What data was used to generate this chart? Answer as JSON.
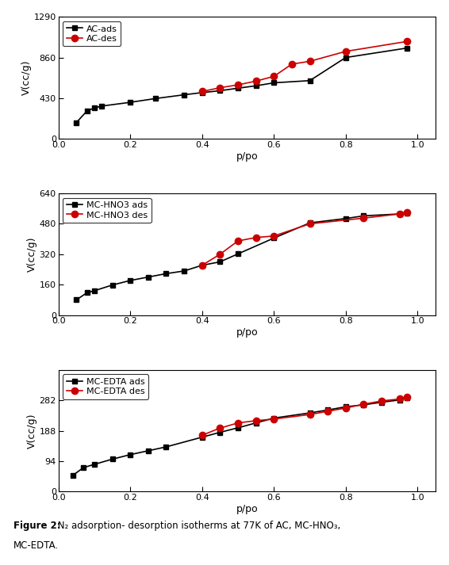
{
  "plot1": {
    "ads_x": [
      0.05,
      0.08,
      0.1,
      0.12,
      0.2,
      0.27,
      0.35,
      0.4,
      0.45,
      0.5,
      0.55,
      0.6,
      0.7,
      0.8,
      0.97
    ],
    "ads_y": [
      170,
      295,
      325,
      345,
      385,
      425,
      465,
      488,
      508,
      535,
      560,
      592,
      615,
      860,
      960
    ],
    "des_x": [
      0.4,
      0.45,
      0.5,
      0.55,
      0.6,
      0.65,
      0.7,
      0.8,
      0.97
    ],
    "des_y": [
      500,
      540,
      570,
      610,
      660,
      790,
      820,
      925,
      1030
    ],
    "ylabel": "V(cc/g)",
    "xlabel": "p/po",
    "ylim": [
      0,
      1290
    ],
    "yticks": [
      0,
      430,
      860,
      1290
    ],
    "xlim": [
      0.0,
      1.05
    ],
    "xticks": [
      0.0,
      0.2,
      0.4,
      0.6,
      0.8,
      1.0
    ],
    "ads_label": "AC-ads",
    "des_label": "AC-des"
  },
  "plot2": {
    "ads_x": [
      0.05,
      0.08,
      0.1,
      0.15,
      0.2,
      0.25,
      0.3,
      0.35,
      0.4,
      0.45,
      0.5,
      0.6,
      0.7,
      0.8,
      0.85,
      0.95,
      0.97
    ],
    "ads_y": [
      80,
      118,
      128,
      158,
      182,
      200,
      218,
      232,
      262,
      280,
      322,
      405,
      485,
      508,
      522,
      532,
      538
    ],
    "des_x": [
      0.4,
      0.45,
      0.5,
      0.55,
      0.6,
      0.7,
      0.85,
      0.95,
      0.97
    ],
    "des_y": [
      262,
      320,
      390,
      408,
      416,
      480,
      510,
      532,
      542
    ],
    "ylabel": "V(cc/g)",
    "xlabel": "p/po",
    "ylim": [
      0,
      640
    ],
    "yticks": [
      0,
      160,
      320,
      480,
      640
    ],
    "xlim": [
      0.0,
      1.05
    ],
    "xticks": [
      0.0,
      0.2,
      0.4,
      0.6,
      0.8,
      1.0
    ],
    "ads_label": "MC-HNO3 ads",
    "des_label": "MC-HNO3 des"
  },
  "plot3": {
    "ads_x": [
      0.04,
      0.07,
      0.1,
      0.15,
      0.2,
      0.25,
      0.3,
      0.4,
      0.45,
      0.5,
      0.55,
      0.6,
      0.7,
      0.75,
      0.8,
      0.85,
      0.9,
      0.95,
      0.97
    ],
    "ads_y": [
      50,
      74,
      84,
      100,
      114,
      126,
      138,
      168,
      183,
      197,
      212,
      227,
      243,
      252,
      262,
      268,
      276,
      283,
      290
    ],
    "des_x": [
      0.4,
      0.45,
      0.5,
      0.55,
      0.6,
      0.7,
      0.75,
      0.8,
      0.85,
      0.9,
      0.95,
      0.97
    ],
    "des_y": [
      174,
      196,
      212,
      219,
      224,
      238,
      248,
      258,
      270,
      280,
      286,
      293
    ],
    "ylabel": "V(cc/g)",
    "xlabel": "p/po",
    "ylim": [
      0,
      376
    ],
    "yticks": [
      0,
      94,
      188,
      282
    ],
    "xlim": [
      0.0,
      1.05
    ],
    "xticks": [
      0.0,
      0.2,
      0.4,
      0.6,
      0.8,
      1.0
    ],
    "ads_label": "MC-EDTA ads",
    "des_label": "MC-EDTA des"
  },
  "ads_color": "#000000",
  "des_color": "#cc0000",
  "ads_marker": "s",
  "des_marker": "o",
  "marker_size": 5,
  "marker_size_des": 6,
  "line_width": 1.2,
  "caption_bold": "Figure 2:",
  "caption_normal": " N₂ adsorption- desorption isotherms at 77K of AC, MC-HNO₃,\nMC-EDTA.",
  "bg_color": "#ffffff",
  "tick_fontsize": 8,
  "label_fontsize": 9,
  "legend_fontsize": 8
}
